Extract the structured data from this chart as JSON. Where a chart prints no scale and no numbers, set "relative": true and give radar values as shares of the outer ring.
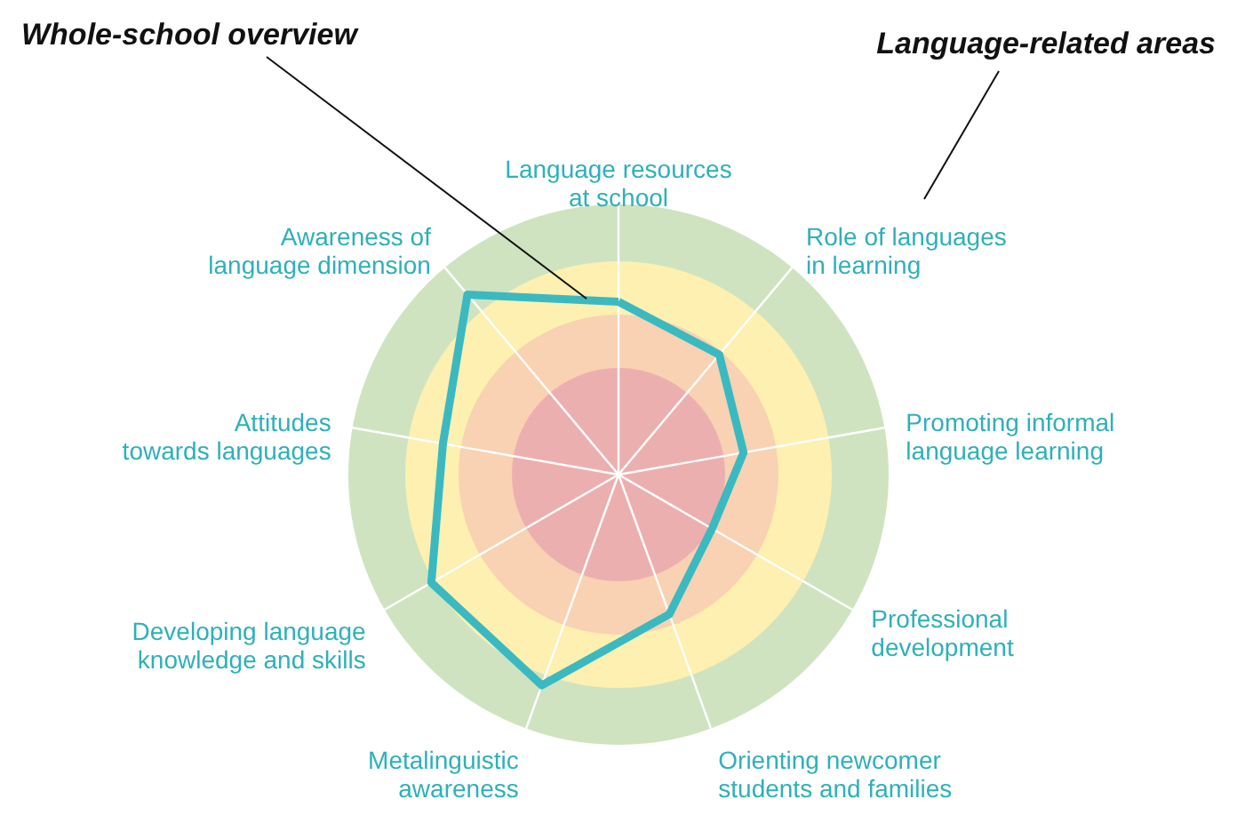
{
  "chart_data": {
    "type": "radar",
    "relative": true,
    "marker": "none",
    "grid": false,
    "categories": [
      "Language resources\nat school",
      "Role of languages\nin learning",
      "Promoting informal\nlanguage learning",
      "Professional\ndevelopment",
      "Orienting newcomer\nstudents and families",
      "Metalinguistic\nawareness",
      "Developing language\nknowledge and skills",
      "Attitudes\ntowards languages",
      "Awareness of\nlanguage dimension"
    ],
    "series": [
      {
        "color": "#3bb9c1",
        "values": [
          0.64,
          0.58,
          0.47,
          0.4,
          0.55,
          0.83,
          0.8,
          0.66,
          0.87
        ]
      }
    ],
    "annotations": [
      "Whole-school overview",
      "Language-related areas"
    ]
  }
}
